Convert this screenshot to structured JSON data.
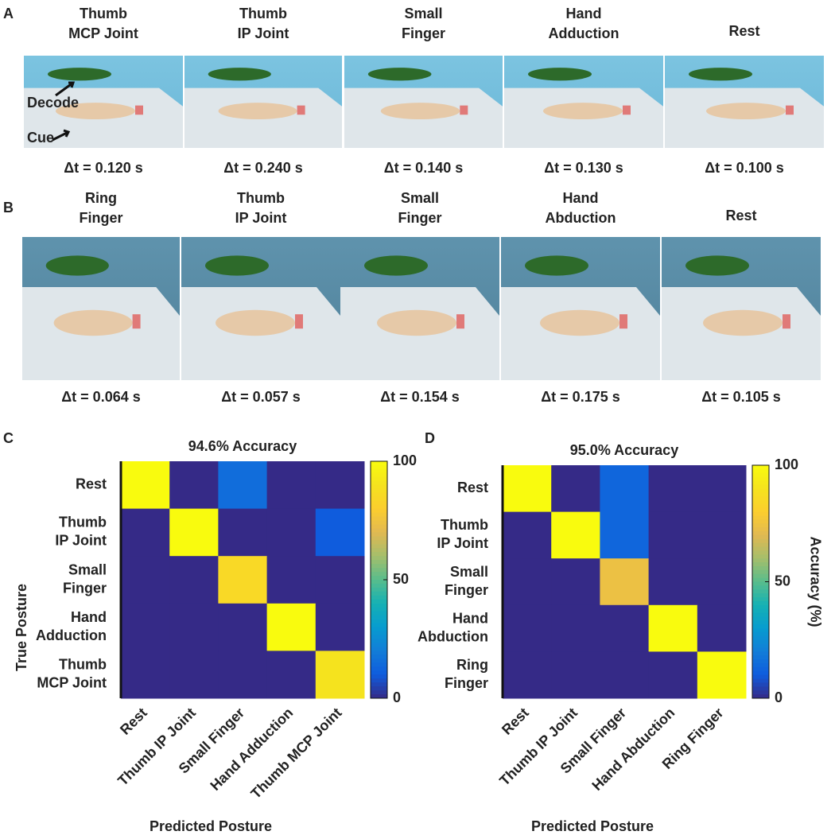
{
  "panels": {
    "a": {
      "letter": "A",
      "annotations": [
        "Decode",
        "Cue"
      ],
      "items": [
        {
          "title": [
            "Thumb",
            "MCP Joint"
          ],
          "dt": "Δt = 0.120 s"
        },
        {
          "title": [
            "Thumb",
            "IP Joint"
          ],
          "dt": "Δt = 0.240 s"
        },
        {
          "title": [
            "Small",
            "Finger"
          ],
          "dt": "Δt = 0.140 s"
        },
        {
          "title": [
            "Hand",
            "Adduction"
          ],
          "dt": "Δt = 0.130 s"
        },
        {
          "title": [
            "Rest"
          ],
          "dt": "Δt = 0.100 s"
        }
      ]
    },
    "b": {
      "letter": "B",
      "items": [
        {
          "title": [
            "Ring",
            "Finger"
          ],
          "dt": "Δt = 0.064 s"
        },
        {
          "title": [
            "Thumb",
            "IP Joint"
          ],
          "dt": "Δt = 0.057 s"
        },
        {
          "title": [
            "Small",
            "Finger"
          ],
          "dt": "Δt = 0.154 s"
        },
        {
          "title": [
            "Hand",
            "Abduction"
          ],
          "dt": "Δt = 0.175 s"
        },
        {
          "title": [
            "Rest"
          ],
          "dt": "Δt = 0.105 s"
        }
      ]
    }
  },
  "chart_data": [
    {
      "type": "heatmap",
      "letter": "C",
      "title": "94.6% Accuracy",
      "colormap": "parula",
      "rows": [
        [
          "Rest"
        ],
        [
          "Thumb",
          "IP Joint"
        ],
        [
          "Small",
          "Finger"
        ],
        [
          "Hand",
          "Adduction"
        ],
        [
          "Thumb",
          "MCP Joint"
        ]
      ],
      "columns": [
        "Rest",
        "Thumb IP Joint",
        "Small Finger",
        "Hand Adduction",
        "Thumb MCP Joint"
      ],
      "values": [
        [
          100,
          0,
          15,
          0,
          0
        ],
        [
          0,
          100,
          0,
          0,
          10
        ],
        [
          0,
          0,
          85,
          0,
          0
        ],
        [
          0,
          0,
          0,
          100,
          0
        ],
        [
          0,
          0,
          0,
          0,
          90
        ]
      ],
      "zlim": [
        0,
        100
      ],
      "zticks": [
        0,
        50,
        100
      ],
      "x_label": "Predicted Posture",
      "y_label": "True Posture"
    },
    {
      "type": "heatmap",
      "letter": "D",
      "title": "95.0% Accuracy",
      "colormap": "parula",
      "rows": [
        [
          "Rest"
        ],
        [
          "Thumb",
          "IP Joint"
        ],
        [
          "Small",
          "Finger"
        ],
        [
          "Hand",
          "Abduction"
        ],
        [
          "Ring",
          "Finger"
        ]
      ],
      "columns": [
        "Rest",
        "Thumb IP Joint",
        "Small Finger",
        "Hand Abduction",
        "Ring Finger"
      ],
      "values": [
        [
          100,
          0,
          13,
          0,
          0
        ],
        [
          0,
          100,
          13,
          0,
          0
        ],
        [
          0,
          0,
          74,
          0,
          0
        ],
        [
          0,
          0,
          0,
          100,
          0
        ],
        [
          0,
          0,
          0,
          0,
          100
        ]
      ],
      "zlim": [
        0,
        100
      ],
      "zticks": [
        0,
        50,
        100
      ],
      "x_label": "Predicted Posture",
      "colorbar_label": "Accuracy (%)"
    }
  ]
}
